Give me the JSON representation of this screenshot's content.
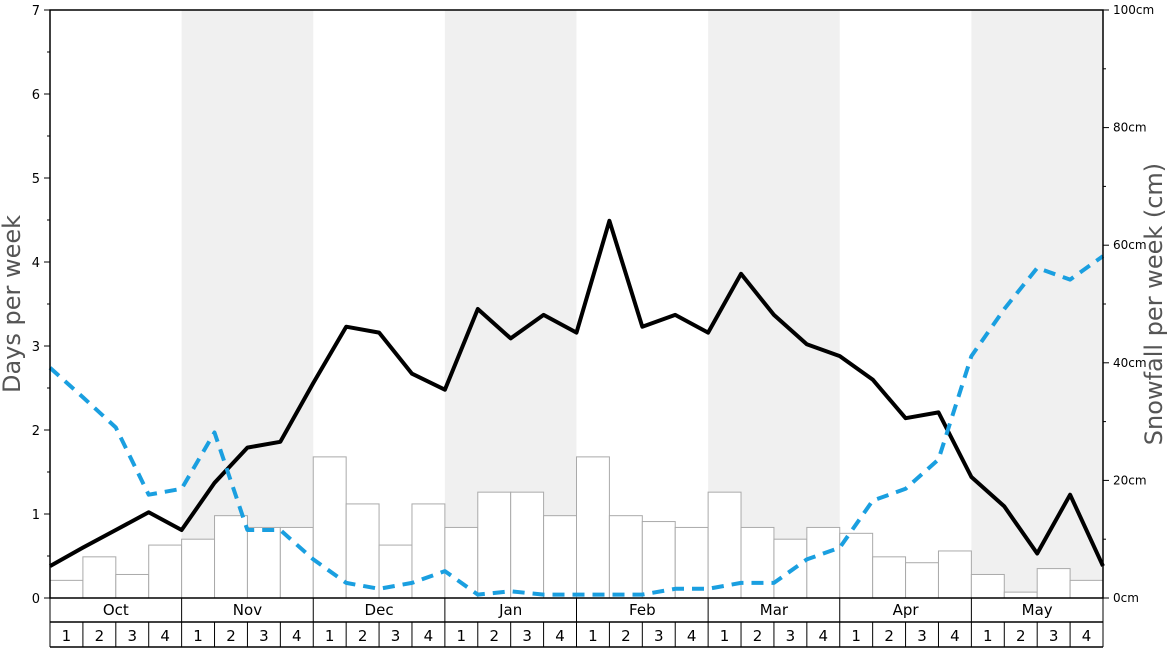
{
  "chart_data": {
    "type": "bar+line",
    "months": [
      "Oct",
      "Nov",
      "Dec",
      "Jan",
      "Feb",
      "Mar",
      "Apr",
      "May"
    ],
    "weeks": [
      "1",
      "2",
      "3",
      "4"
    ],
    "ylabel_left": "Days per week",
    "ylabel_right": "Snowfall per week (cm)",
    "ylim_left": [
      0,
      7
    ],
    "ylim_right": [
      0,
      100
    ],
    "left_ticks": [
      "0",
      "1",
      "2",
      "3",
      "4",
      "5",
      "6",
      "7"
    ],
    "right_ticks": [
      "0cm",
      "20cm",
      "40cm",
      "60cm",
      "80cm",
      "100cm"
    ],
    "snowfall_bars_cm": [
      3,
      7,
      4,
      9,
      10,
      14,
      12,
      12,
      24,
      16,
      9,
      16,
      12,
      18,
      18,
      14,
      24,
      14,
      13,
      12,
      18,
      12,
      10,
      12,
      11,
      7,
      6,
      8,
      4,
      1,
      5,
      3
    ],
    "series": [
      {
        "values": [
          0.38,
          0.6,
          0.81,
          1.02,
          0.81,
          1.37,
          1.79,
          1.86,
          2.56,
          3.23,
          3.16,
          2.67,
          2.48,
          3.44,
          3.09,
          3.37,
          3.16,
          4.49,
          3.23,
          3.37,
          3.16,
          3.86,
          3.37,
          3.02,
          2.88,
          2.6,
          2.14,
          2.21,
          1.44,
          1.09,
          0.53,
          1.23,
          0.38
        ],
        "style": "solid",
        "color": "#000000"
      },
      {
        "values": [
          2.74,
          2.39,
          2.03,
          1.23,
          1.3,
          1.97,
          0.81,
          0.81,
          0.46,
          0.18,
          0.11,
          0.18,
          0.32,
          0.04,
          0.08,
          0.04,
          0.04,
          0.04,
          0.04,
          0.11,
          0.11,
          0.18,
          0.18,
          0.46,
          0.6,
          1.16,
          1.3,
          1.65,
          2.88,
          3.44,
          3.93,
          3.79,
          4.07
        ],
        "style": "dashed",
        "color": "#1a9fe0"
      }
    ],
    "colors": {
      "band_shade": "#f0f0f0",
      "bar_fill": "#ffffff",
      "bar_stroke": "#aaaaaa"
    }
  }
}
